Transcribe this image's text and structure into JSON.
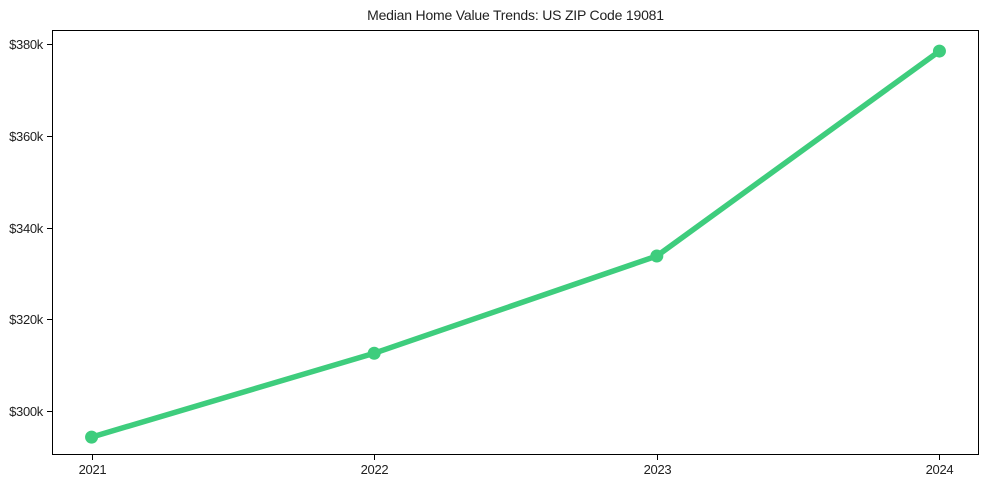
{
  "chart_data": {
    "type": "line",
    "title": "Median Home Value Trends: US ZIP Code 19081",
    "x": [
      2021,
      2022,
      2023,
      2024
    ],
    "x_tick_labels": [
      "2021",
      "2022",
      "2023",
      "2024"
    ],
    "values": [
      294300,
      312600,
      333800,
      378500
    ],
    "yticks": [
      300000,
      320000,
      340000,
      360000,
      380000
    ],
    "y_tick_labels": [
      "$300k",
      "$320k",
      "$340k",
      "$360k",
      "$380k"
    ],
    "xlim": [
      2020.86,
      2024.14
    ],
    "ylim": [
      290400,
      383100
    ],
    "xlabel": "",
    "ylabel": "",
    "grid": false,
    "legend": "none",
    "line_color": "#3ecd7d",
    "marker": "circle",
    "axis_color": "#000000",
    "text_color": "#1f1f1f"
  }
}
